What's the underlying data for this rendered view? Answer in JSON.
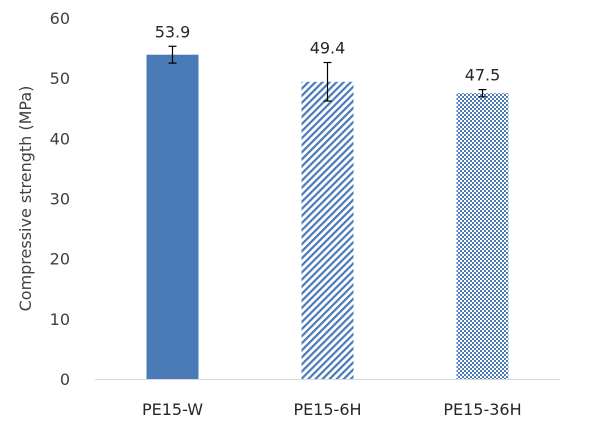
{
  "chart_data": {
    "type": "bar",
    "categories": [
      "PE15-W",
      "PE15-6H",
      "PE15-36H"
    ],
    "values": [
      53.9,
      49.4,
      47.5
    ],
    "errors": [
      1.4,
      3.2,
      0.6
    ],
    "data_labels": [
      "53.9",
      "49.4",
      "47.5"
    ],
    "title": "",
    "xlabel": "",
    "ylabel": "Compressive strength (MPa)",
    "ylim": [
      0,
      60
    ],
    "yticks": [
      0,
      10,
      20,
      30,
      40,
      50,
      60
    ],
    "ytick_labels": [
      "0",
      "10",
      "20",
      "30",
      "40",
      "50",
      "60"
    ],
    "grid": false,
    "legend": "none",
    "bar_fills": [
      "solid",
      "diagonal-hatch",
      "checker-hatch"
    ],
    "colors": {
      "bar": "#4a7bb7",
      "axis": "#d9d9d9",
      "error_bar": "#000000"
    }
  }
}
